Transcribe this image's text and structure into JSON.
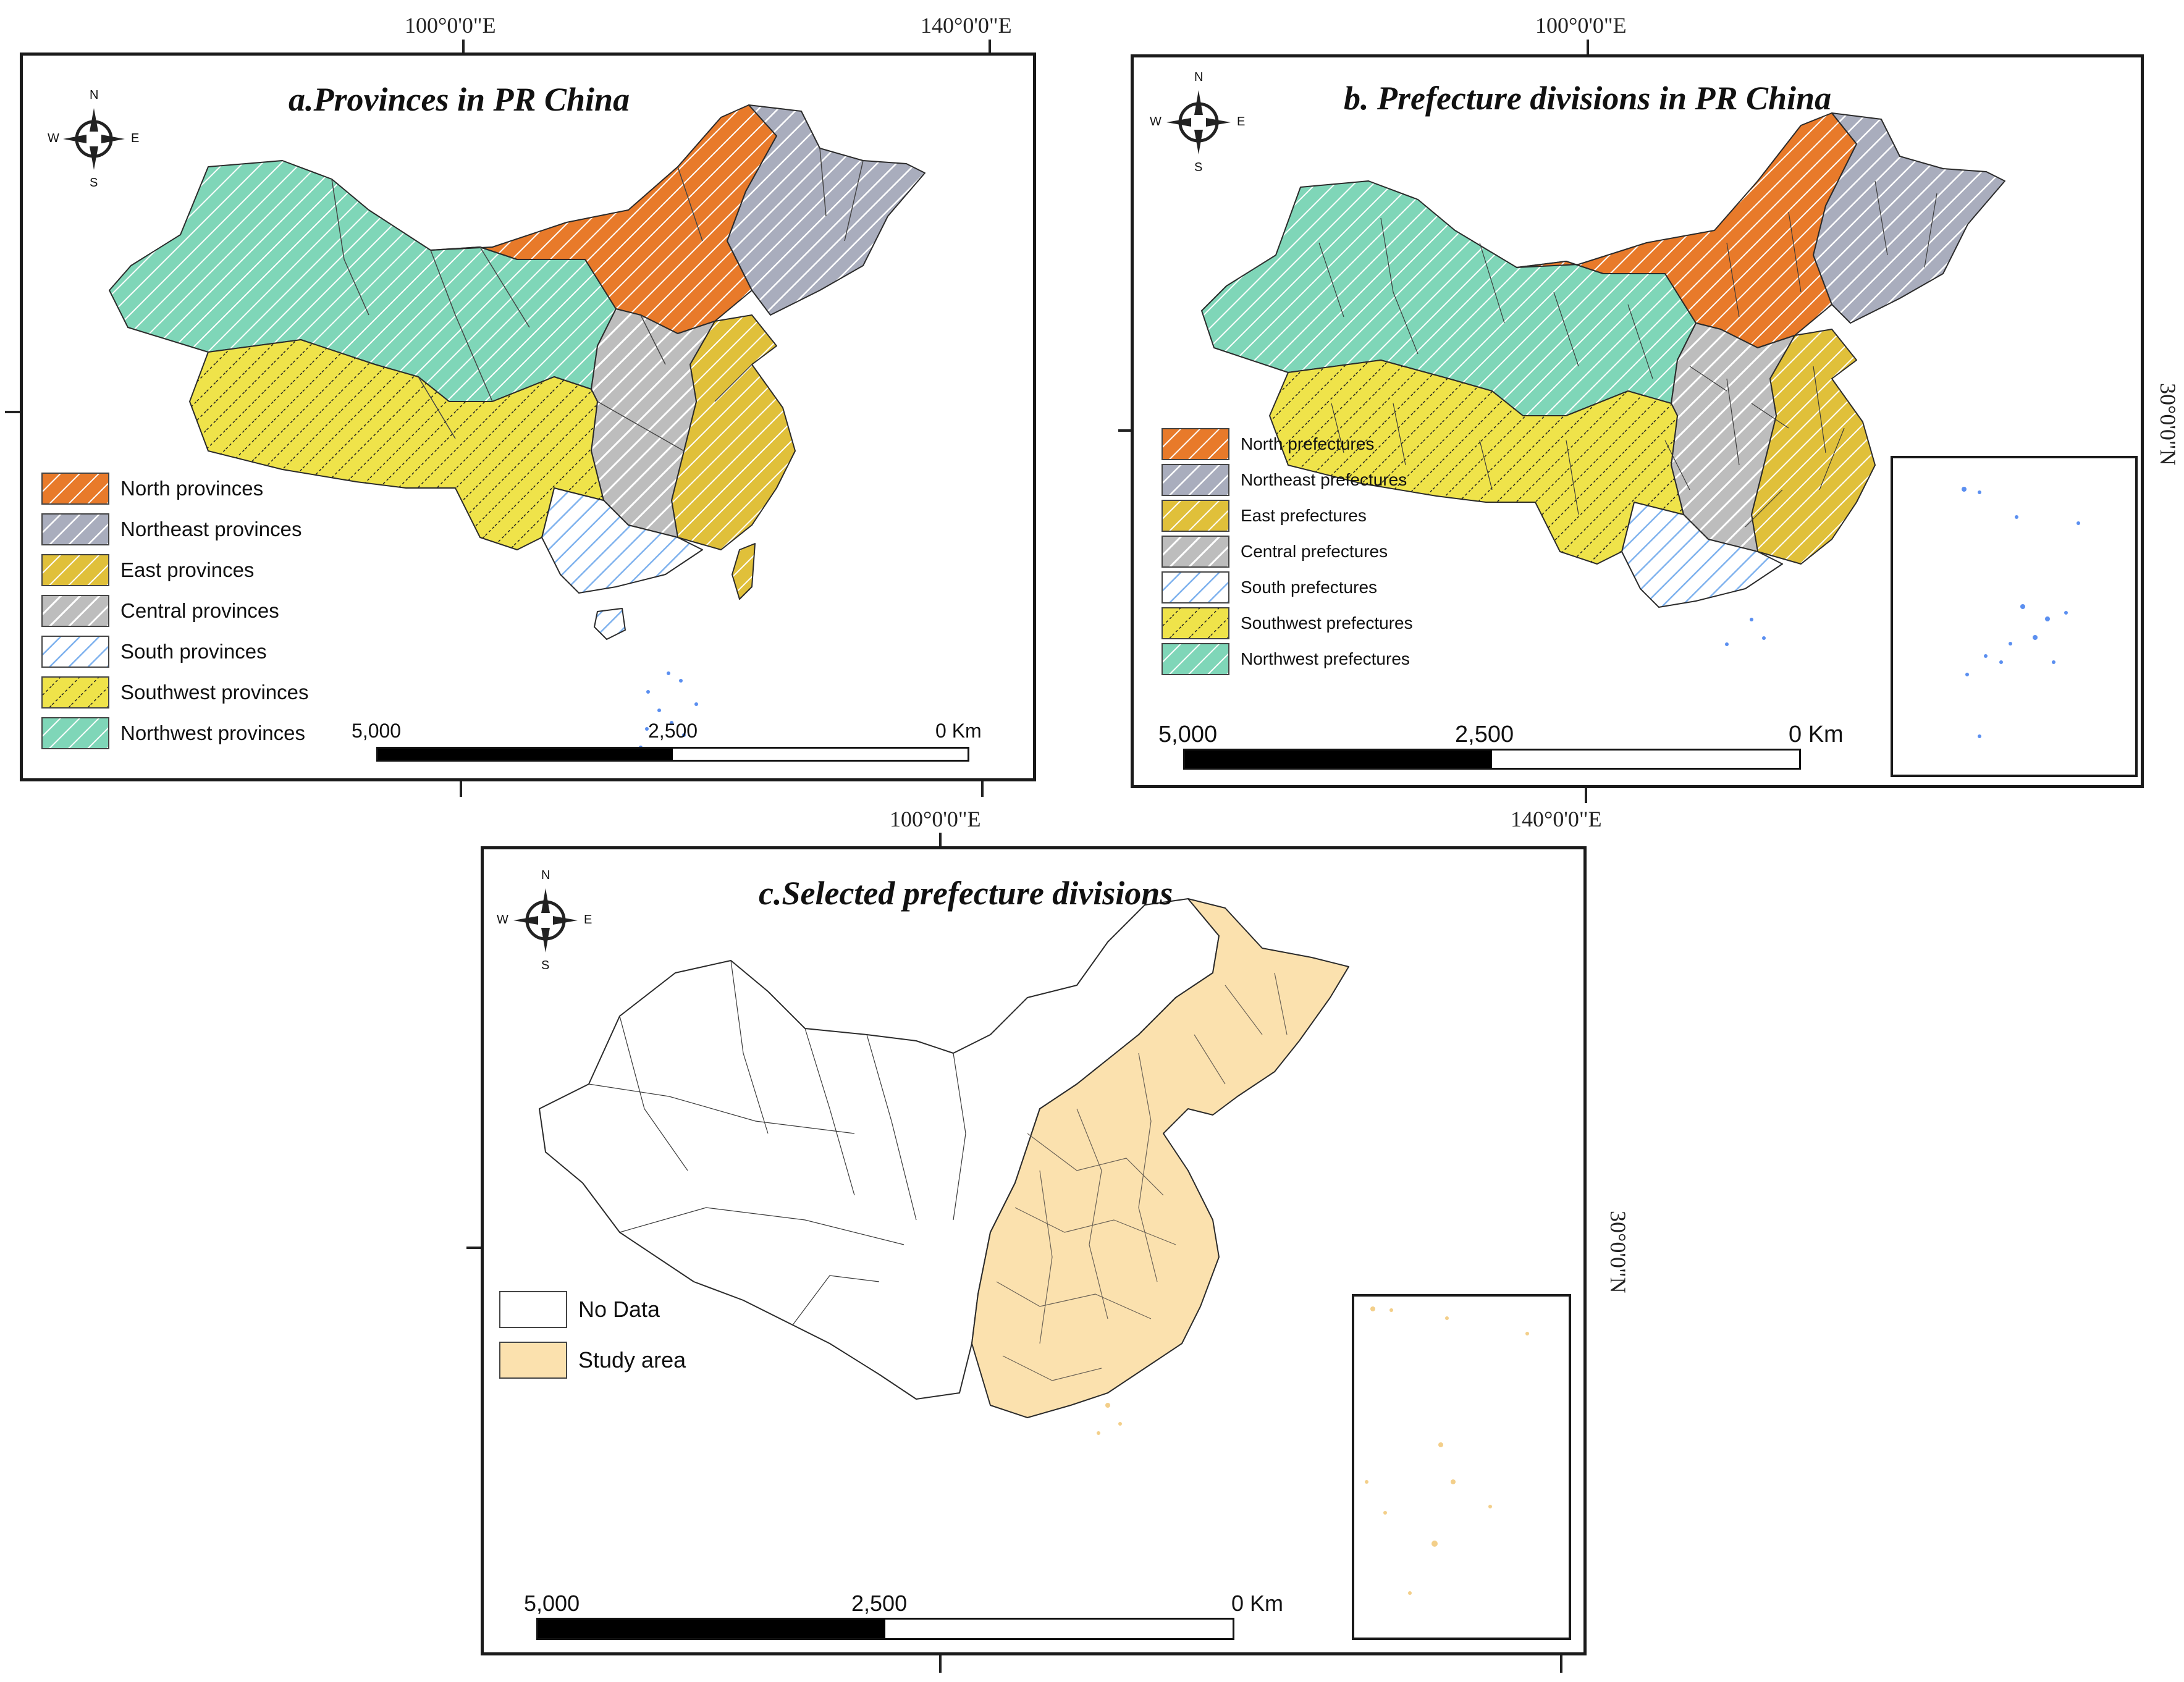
{
  "colors": {
    "north": "#e87a2a",
    "northeast": "#a9adbd",
    "east": "#e0c03a",
    "central": "#b5b5b5",
    "south": "#9cc3f0",
    "southwest": "#efe34a",
    "northwest": "#7fd6b8",
    "study_area": "#fbe1ae",
    "no_data": "#ffffff"
  },
  "axis_labels": {
    "lon_100": "100°0'0\"E",
    "lon_140": "140°0'0\"E",
    "lat_30": "30°0'0\"N"
  },
  "panels": {
    "a": {
      "title": "a.Provinces in PR China",
      "legend": [
        {
          "label": "North provinces",
          "color_key": "north"
        },
        {
          "label": "Northeast provinces",
          "color_key": "northeast"
        },
        {
          "label": "East provinces",
          "color_key": "east"
        },
        {
          "label": "Central provinces",
          "color_key": "central"
        },
        {
          "label": "South provinces",
          "color_key": "south"
        },
        {
          "label": "Southwest provinces",
          "color_key": "southwest"
        },
        {
          "label": "Northwest provinces",
          "color_key": "northwest"
        }
      ],
      "scale": {
        "left": "5,000",
        "mid": "2,500",
        "right": "0 Km"
      }
    },
    "b": {
      "title": "b. Prefecture divisions in PR China",
      "legend": [
        {
          "label": "North prefectures",
          "color_key": "north"
        },
        {
          "label": "Northeast prefectures",
          "color_key": "northeast"
        },
        {
          "label": "East prefectures",
          "color_key": "east"
        },
        {
          "label": "Central prefectures",
          "color_key": "central"
        },
        {
          "label": "South prefectures",
          "color_key": "south"
        },
        {
          "label": "Southwest prefectures",
          "color_key": "southwest"
        },
        {
          "label": "Northwest prefectures",
          "color_key": "northwest"
        }
      ],
      "scale": {
        "left": "5,000",
        "mid": "2,500",
        "right": "0 Km"
      }
    },
    "c": {
      "title": "c.Selected prefecture divisions",
      "legend": [
        {
          "label": "No Data",
          "color_key": "no_data"
        },
        {
          "label": "Study area",
          "color_key": "study_area"
        }
      ],
      "scale": {
        "left": "5,000",
        "mid": "2,500",
        "right": "0 Km"
      }
    }
  },
  "compass": {
    "n": "N",
    "s": "S",
    "e": "E",
    "w": "W"
  }
}
